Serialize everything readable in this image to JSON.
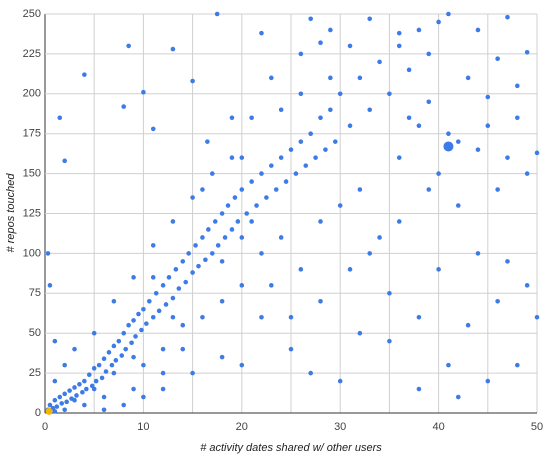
{
  "chart_data": {
    "type": "scatter",
    "x_label": "# activity dates shared w/ other users",
    "y_label": "# repos touched",
    "xlim": [
      0,
      50
    ],
    "ylim": [
      0,
      250
    ],
    "xticks": [
      0,
      10,
      20,
      30,
      40,
      50
    ],
    "x_minor_grid": [
      5,
      15,
      25,
      35,
      45
    ],
    "yticks": [
      0,
      25,
      50,
      75,
      100,
      125,
      150,
      175,
      200,
      225,
      250
    ],
    "grid": true,
    "series": [
      {
        "color": "#3d7be8",
        "x": [
          0.3,
          0.5,
          0.8,
          1,
          1.2,
          1.5,
          1.7,
          2,
          2.2,
          2.5,
          2.7,
          3,
          3.2,
          3.5,
          3.8,
          4,
          4.2,
          4.5,
          4.8,
          5,
          5.2,
          5.5,
          5.8,
          6,
          6.2,
          6.5,
          6.8,
          7,
          7.2,
          7.5,
          7.8,
          8,
          8.2,
          8.5,
          8.8,
          9,
          9.2,
          9.5,
          9.8,
          10,
          10.3,
          10.6,
          11,
          11.3,
          11.6,
          12,
          12.3,
          12.6,
          13,
          13.3,
          13.6,
          14,
          14.3,
          14.6,
          15,
          15.3,
          15.6,
          16,
          16.3,
          16.6,
          17,
          17.3,
          17.6,
          18,
          18.3,
          18.6,
          19,
          19.3,
          19.6,
          20,
          20.5,
          21,
          21.5,
          22,
          22.5,
          23,
          23.5,
          24,
          24.5,
          25,
          25.5,
          26,
          26.5,
          27,
          27.5,
          28,
          28.5,
          29,
          29.5,
          30,
          31,
          32,
          33,
          34,
          35,
          36,
          37,
          38,
          39,
          40,
          1,
          0.5,
          0.3,
          1.5,
          2,
          4,
          8,
          8.5,
          10,
          11,
          13,
          15,
          16.5,
          17.5,
          22,
          27,
          28,
          33,
          36,
          41,
          44,
          46,
          47,
          49,
          43,
          45,
          48,
          50,
          49,
          46,
          42,
          44,
          47,
          50,
          48,
          45,
          42,
          38,
          35,
          32,
          30,
          27,
          25,
          23,
          20,
          18,
          15,
          12,
          10,
          8,
          6,
          16,
          14,
          12,
          10,
          20,
          22,
          24,
          26,
          28,
          30,
          32,
          34,
          36,
          38,
          40,
          35,
          38,
          40,
          41,
          43,
          46,
          49,
          47,
          44,
          41,
          39,
          37,
          31,
          29,
          26,
          24,
          21,
          19,
          17,
          15,
          13,
          11,
          9,
          7,
          5,
          3,
          2,
          1,
          4,
          6,
          9,
          12,
          14,
          18,
          20,
          22,
          25,
          28,
          31,
          33,
          36,
          39,
          42,
          45,
          48,
          19,
          23,
          26,
          29,
          16,
          18,
          20,
          21,
          13,
          11,
          9,
          7,
          5,
          3,
          2,
          1
        ],
        "values": [
          2,
          5,
          3,
          8,
          4,
          10,
          6,
          12,
          7,
          14,
          9,
          16,
          11,
          18,
          13,
          20,
          15,
          24,
          17,
          28,
          20,
          30,
          22,
          34,
          26,
          38,
          30,
          42,
          33,
          45,
          36,
          50,
          40,
          55,
          44,
          58,
          48,
          62,
          52,
          65,
          56,
          70,
          60,
          75,
          64,
          80,
          68,
          85,
          72,
          90,
          78,
          95,
          82,
          100,
          88,
          105,
          92,
          110,
          96,
          115,
          100,
          120,
          105,
          125,
          110,
          130,
          115,
          135,
          120,
          140,
          125,
          145,
          130,
          150,
          135,
          155,
          140,
          160,
          145,
          165,
          150,
          170,
          155,
          175,
          160,
          185,
          165,
          190,
          170,
          200,
          180,
          210,
          190,
          220,
          200,
          230,
          215,
          240,
          225,
          245,
          45,
          80,
          100,
          185,
          158,
          212,
          192,
          230,
          201,
          178,
          228,
          208,
          170,
          250,
          238,
          247,
          232,
          247,
          238,
          250,
          240,
          222,
          248,
          226,
          210,
          198,
          185,
          163,
          150,
          140,
          130,
          100,
          95,
          60,
          30,
          20,
          10,
          15,
          45,
          50,
          20,
          25,
          60,
          80,
          30,
          35,
          25,
          15,
          10,
          5,
          2,
          60,
          40,
          40,
          30,
          80,
          100,
          110,
          90,
          120,
          130,
          140,
          110,
          160,
          180,
          150,
          75,
          60,
          90,
          30,
          55,
          70,
          80,
          160,
          165,
          175,
          195,
          185,
          230,
          210,
          200,
          190,
          185,
          160,
          150,
          135,
          120,
          105,
          85,
          70,
          50,
          40,
          30,
          20,
          5,
          10,
          15,
          25,
          55,
          70,
          110,
          60,
          40,
          70,
          90,
          100,
          120,
          140,
          170,
          180,
          205,
          185,
          210,
          225,
          240,
          140,
          95,
          160,
          120,
          60,
          85,
          35,
          25,
          15,
          8,
          2,
          1
        ]
      },
      {
        "color": "#3d7be8",
        "x": [
          41
        ],
        "values": [
          167
        ]
      },
      {
        "color": "#f4b400",
        "x": [
          0.4
        ],
        "values": [
          1
        ]
      }
    ]
  }
}
